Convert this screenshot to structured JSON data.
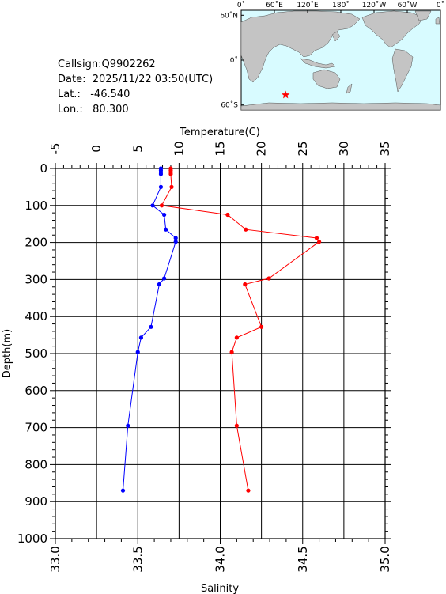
{
  "info": {
    "callsign_label": "Callsign:",
    "callsign": "Q9902262",
    "date_label": "Date:",
    "date": "2025/11/22 03:50(UTC)",
    "lat_label": "Lat.:",
    "lat": "-46.540",
    "lon_label": "Lon.:",
    "lon": "80.300"
  },
  "map": {
    "ocean_color": "#d8fbff",
    "land_color": "#c4c4c4",
    "marker_color": "#ff0000",
    "lon_labels": [
      "0˚",
      "60˚E",
      "120˚E",
      "180˚",
      "120˚W",
      "60˚W",
      "0˚"
    ],
    "lat_labels": [
      "60˚N",
      "0˚",
      "60˚S"
    ],
    "marker": {
      "lon": 80.3,
      "lat": -46.54
    }
  },
  "chart_data": {
    "type": "line",
    "ylabel": "Depth(m)",
    "ylim": [
      0,
      1000
    ],
    "y_ticks": [
      "0",
      "100",
      "200",
      "300",
      "400",
      "500",
      "600",
      "700",
      "800",
      "900",
      "1000"
    ],
    "top_axis": {
      "label": "Temperature(C)",
      "range": [
        -5,
        35
      ],
      "ticks": [
        "-5",
        "0",
        "5",
        "10",
        "15",
        "20",
        "25",
        "30",
        "35"
      ]
    },
    "bottom_axis": {
      "label": "Salinity",
      "range": [
        33.0,
        35.0
      ],
      "ticks": [
        "33.0",
        "33.5",
        "34.0",
        "34.5",
        "35.0"
      ]
    },
    "series": [
      {
        "axis": "top",
        "color": "#ff0000",
        "points": [
          {
            "x": 9.0,
            "depth": 0
          },
          {
            "x": 9.0,
            "depth": 5
          },
          {
            "x": 9.0,
            "depth": 10
          },
          {
            "x": 9.0,
            "depth": 15
          },
          {
            "x": 9.1,
            "depth": 50
          },
          {
            "x": 7.9,
            "depth": 100
          },
          {
            "x": 15.9,
            "depth": 125
          },
          {
            "x": 18.1,
            "depth": 165
          },
          {
            "x": 26.7,
            "depth": 188
          },
          {
            "x": 27.0,
            "depth": 198
          },
          {
            "x": 20.9,
            "depth": 297
          },
          {
            "x": 18.0,
            "depth": 313
          },
          {
            "x": 20.0,
            "depth": 428
          },
          {
            "x": 17.0,
            "depth": 457
          },
          {
            "x": 16.4,
            "depth": 496
          },
          {
            "x": 17.0,
            "depth": 695
          },
          {
            "x": 18.4,
            "depth": 870
          }
        ]
      },
      {
        "axis": "bottom",
        "color": "#0000ff",
        "points": [
          {
            "x": 33.64,
            "depth": 0
          },
          {
            "x": 33.64,
            "depth": 5
          },
          {
            "x": 33.64,
            "depth": 10
          },
          {
            "x": 33.64,
            "depth": 15
          },
          {
            "x": 33.64,
            "depth": 50
          },
          {
            "x": 33.59,
            "depth": 100
          },
          {
            "x": 33.66,
            "depth": 125
          },
          {
            "x": 33.67,
            "depth": 165
          },
          {
            "x": 33.73,
            "depth": 188
          },
          {
            "x": 33.73,
            "depth": 198
          },
          {
            "x": 33.66,
            "depth": 297
          },
          {
            "x": 33.63,
            "depth": 313
          },
          {
            "x": 33.58,
            "depth": 428
          },
          {
            "x": 33.52,
            "depth": 457
          },
          {
            "x": 33.5,
            "depth": 496
          },
          {
            "x": 33.44,
            "depth": 695
          },
          {
            "x": 33.41,
            "depth": 870
          }
        ]
      }
    ]
  }
}
